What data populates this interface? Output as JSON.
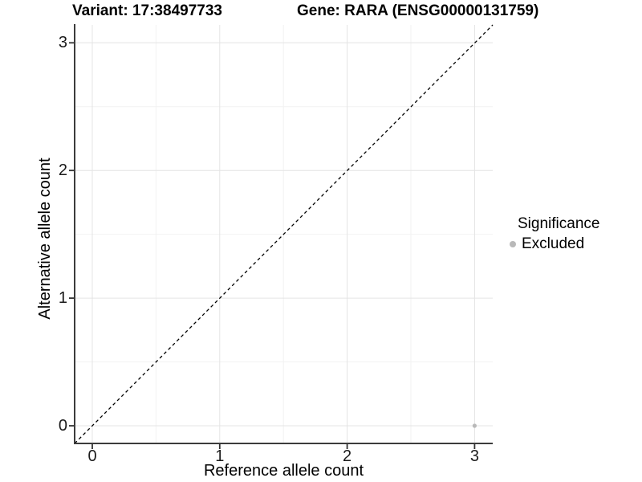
{
  "chart_data": {
    "type": "scatter",
    "titles": {
      "variant": "Variant: 17:38497733",
      "gene": "Gene: RARA (ENSG00000131759)"
    },
    "xlabel": "Reference allele count",
    "ylabel": "Alternative allele count",
    "x_ticks": [
      "0",
      "1",
      "2",
      "3"
    ],
    "y_ticks": [
      "0",
      "1",
      "2",
      "3"
    ],
    "xlim": [
      -0.14,
      3.14
    ],
    "ylim": [
      -0.14,
      3.14
    ],
    "grid": {
      "major": true,
      "minor": true
    },
    "reference_line": {
      "type": "identity y=x",
      "style": "dashed",
      "color": "#000000"
    },
    "legend": {
      "title": "Significance",
      "position": "right",
      "entries": [
        {
          "label": "Excluded",
          "marker": "circle",
          "color": "#b9b9b9"
        }
      ]
    },
    "series": [
      {
        "name": "Excluded",
        "color": "#b9b9b9",
        "points": [
          [
            3,
            0
          ]
        ]
      }
    ]
  },
  "colors": {
    "background": "#ffffff",
    "grid_major": "#e4e4e4",
    "grid_minor": "#f2f2f2",
    "axis_line": "#3c3c3c",
    "tick_mark": "#333333",
    "text": "#000000",
    "ref_line": "#000000"
  }
}
